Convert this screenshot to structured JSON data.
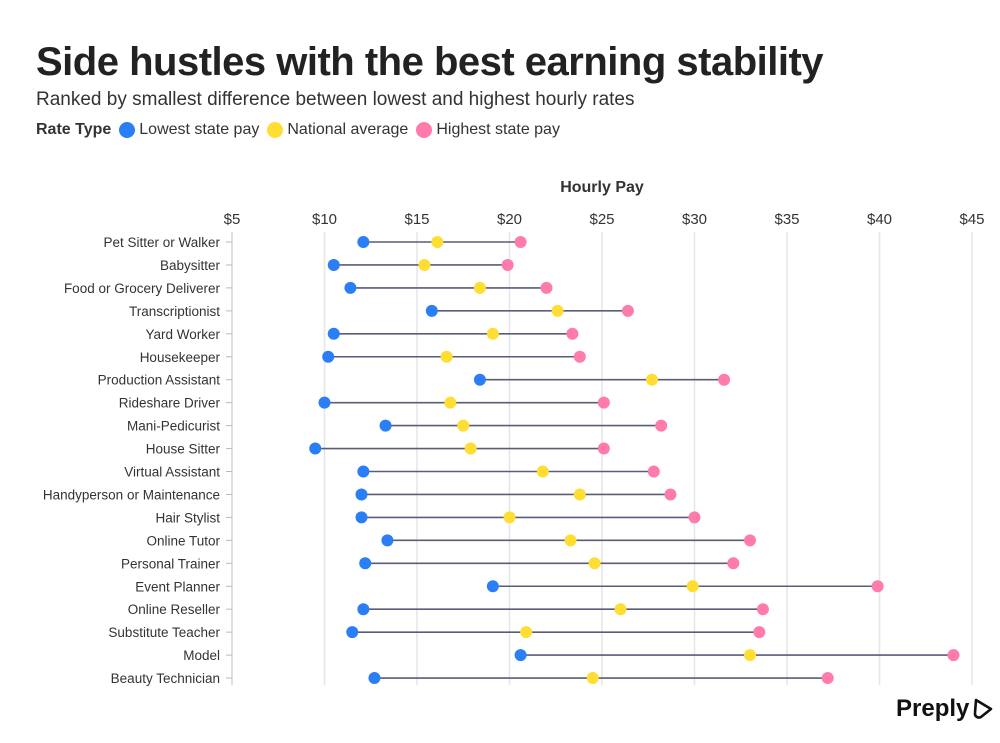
{
  "title": "Side hustles with the best earning stability",
  "subtitle": "Ranked by smallest difference between lowest and highest hourly rates",
  "brand": "Preply",
  "colors": {
    "low": "#2A7FF6",
    "avg": "#FFDD33",
    "high": "#FF7BAC",
    "line": "#5A5C78"
  },
  "chart_data": {
    "type": "dumbbell",
    "xlabel": "Hourly Pay",
    "xlim": [
      5,
      45
    ],
    "xticks": [
      "$5",
      "$10",
      "$15",
      "$20",
      "$25",
      "$30",
      "$35",
      "$40",
      "$45"
    ],
    "grid": true,
    "legend": {
      "title": "Rate Type",
      "placement": "top-left",
      "entries": [
        "Lowest state pay",
        "National average",
        "Highest state pay"
      ]
    },
    "categories": [
      "Pet Sitter or Walker",
      "Babysitter",
      "Food or Grocery Deliverer",
      "Transcriptionist",
      "Yard Worker",
      "Housekeeper",
      "Production Assistant",
      "Rideshare Driver",
      "Mani-Pedicurist",
      "House Sitter",
      "Virtual Assistant",
      "Handyperson or Maintenance",
      "Hair Stylist",
      "Online Tutor",
      "Personal Trainer",
      "Event Planner",
      "Online Reseller",
      "Substitute Teacher",
      "Model",
      "Beauty Technician"
    ],
    "series": [
      {
        "name": "Lowest state pay",
        "values": [
          12.1,
          10.5,
          11.4,
          15.8,
          10.5,
          10.2,
          18.4,
          10.0,
          13.3,
          9.5,
          12.1,
          12.0,
          12.0,
          13.4,
          12.2,
          19.1,
          12.1,
          11.5,
          20.6,
          12.7
        ]
      },
      {
        "name": "National average",
        "values": [
          16.1,
          15.4,
          18.4,
          22.6,
          19.1,
          16.6,
          27.7,
          16.8,
          17.5,
          17.9,
          21.8,
          23.8,
          20.0,
          23.3,
          24.6,
          29.9,
          26.0,
          20.9,
          33.0,
          24.5
        ]
      },
      {
        "name": "Highest state pay",
        "values": [
          20.6,
          19.9,
          22.0,
          26.4,
          23.4,
          23.8,
          31.6,
          25.1,
          28.2,
          25.1,
          27.8,
          28.7,
          30.0,
          33.0,
          32.1,
          39.9,
          33.7,
          33.5,
          44.0,
          37.2
        ]
      }
    ]
  }
}
